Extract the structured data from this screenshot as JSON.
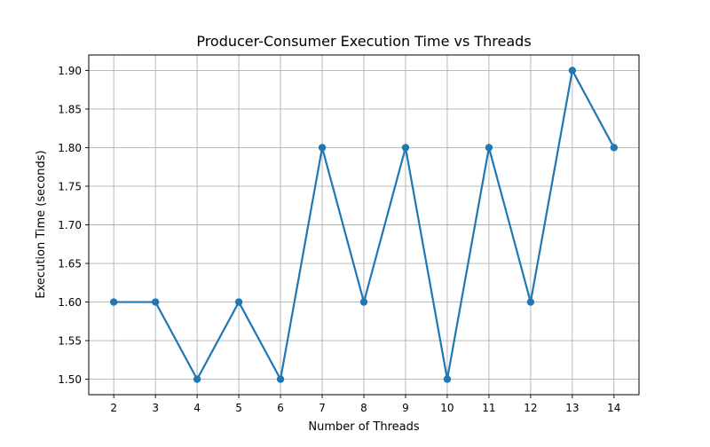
{
  "chart_data": {
    "type": "line",
    "title": "Producer-Consumer Execution Time vs Threads",
    "xlabel": "Number of Threads",
    "ylabel": "Execution Time (seconds)",
    "x": [
      2,
      3,
      4,
      5,
      6,
      7,
      8,
      9,
      10,
      11,
      12,
      13,
      14
    ],
    "series": [
      {
        "values": [
          1.6,
          1.6,
          1.5,
          1.6,
          1.5,
          1.8,
          1.6,
          1.8,
          1.5,
          1.8,
          1.6,
          1.9,
          1.8
        ],
        "color": "#1f77b4",
        "marker": "circle"
      }
    ],
    "xticks": [
      "2",
      "3",
      "4",
      "5",
      "6",
      "7",
      "8",
      "9",
      "10",
      "11",
      "12",
      "13",
      "14"
    ],
    "yticks": [
      "1.50",
      "1.55",
      "1.60",
      "1.65",
      "1.70",
      "1.75",
      "1.80",
      "1.85",
      "1.90"
    ],
    "xlim": [
      1.4,
      14.6
    ],
    "ylim": [
      1.48,
      1.92
    ],
    "grid": true,
    "grid_color": "#b0b0b0",
    "axis_color": "#000000"
  }
}
